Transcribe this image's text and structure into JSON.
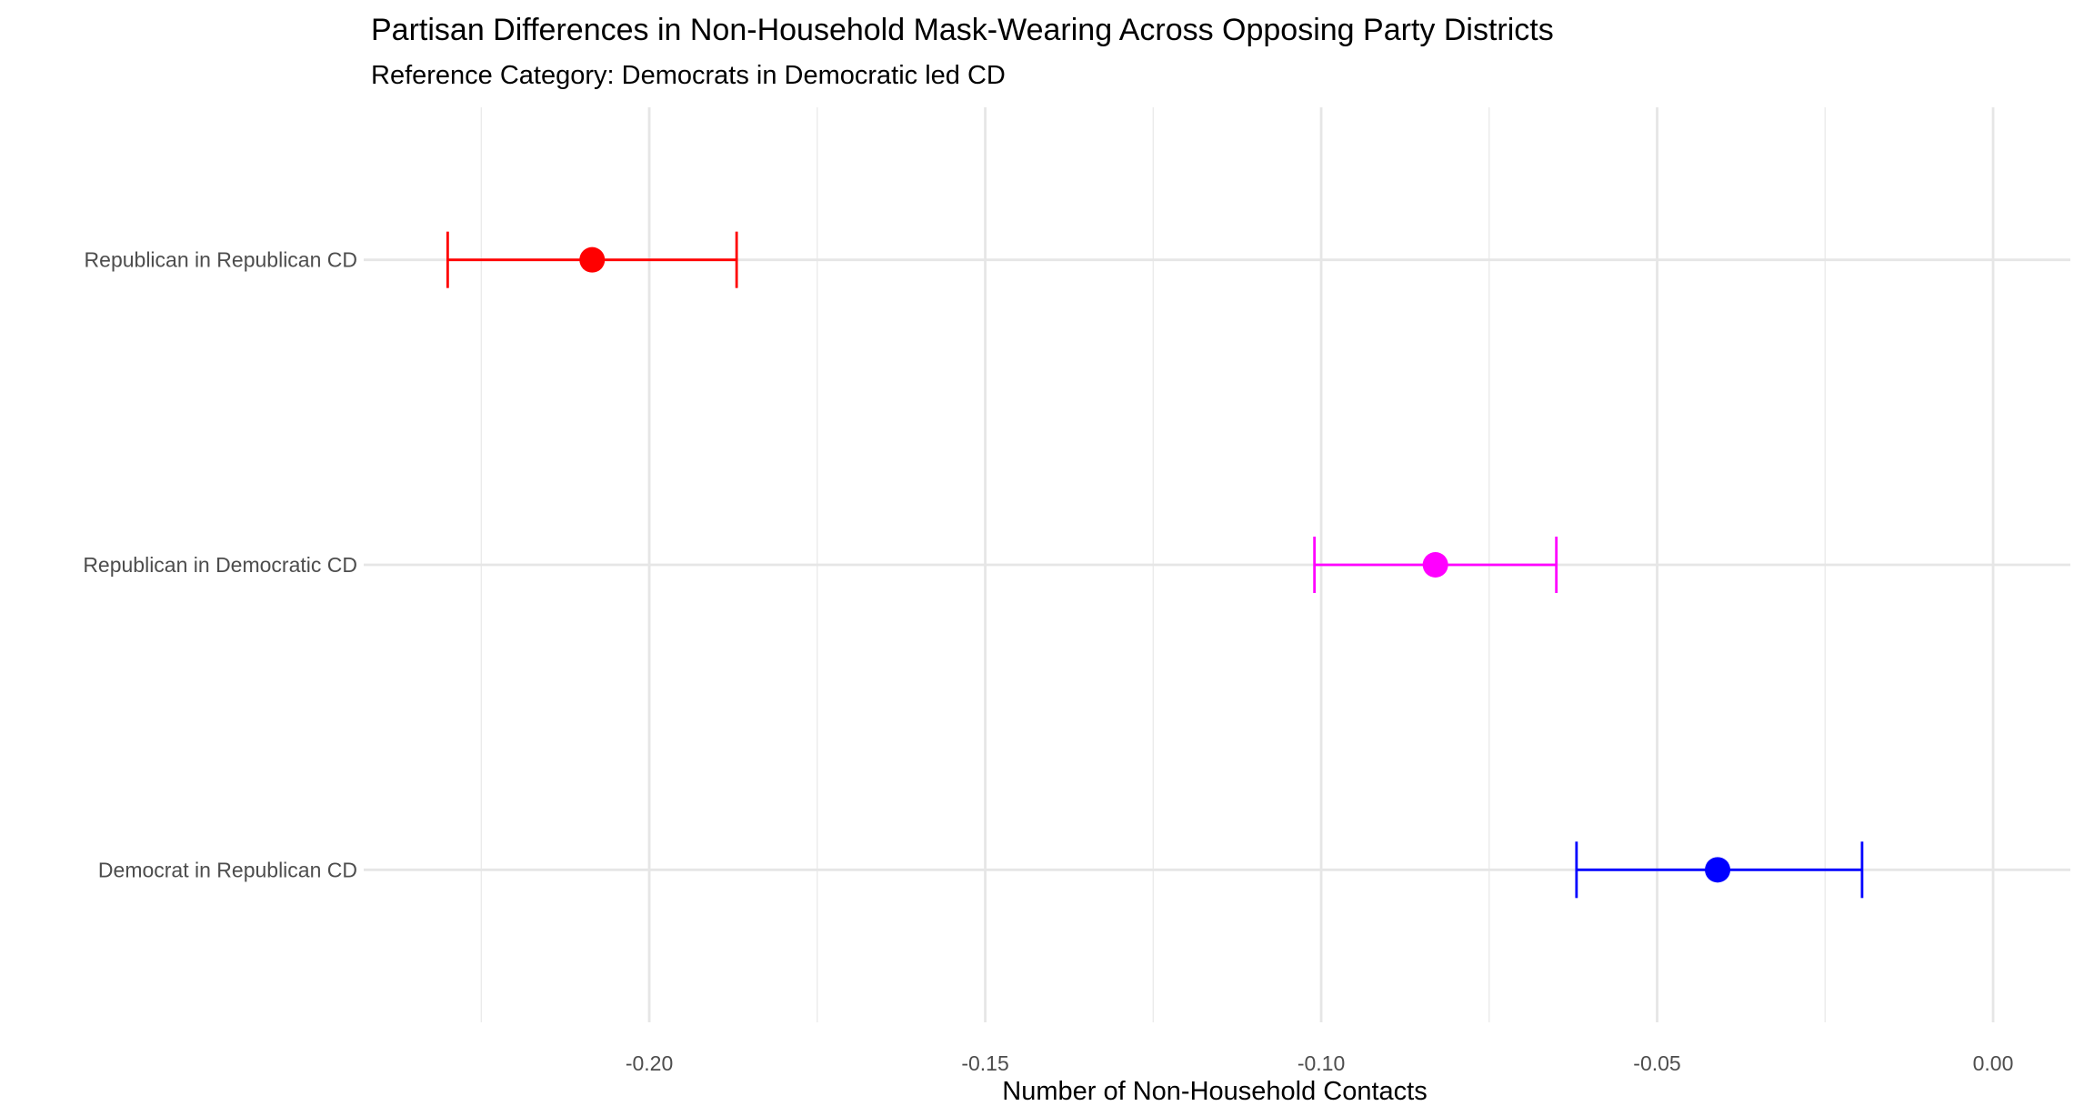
{
  "chart_data": {
    "type": "errorbar",
    "title": "Partisan Differences in Non-Household Mask-Wearing Across Opposing Party Districts",
    "subtitle": "Reference Category: Democrats in Democratic led CD",
    "xlabel": "Number of Non-Household Contacts",
    "ylabel": "",
    "xlim": [
      -0.2425,
      0.0115
    ],
    "grid": true,
    "x_ticks": [
      -0.2,
      -0.15,
      -0.1,
      -0.05,
      0.0
    ],
    "x_tick_labels": [
      "-0.20",
      "-0.15",
      "-0.10",
      "-0.05",
      "0.00"
    ],
    "x_minor_ticks": [
      -0.225,
      -0.175,
      -0.125,
      -0.075,
      -0.025
    ],
    "categories": [
      "Republican in Republican CD",
      "Republican in Democratic CD",
      "Democrat in Republican CD"
    ],
    "points": [
      {
        "category": "Republican in Republican CD",
        "estimate": -0.2085,
        "lower": -0.23,
        "upper": -0.187,
        "color": "#ff0000"
      },
      {
        "category": "Republican in Democratic CD",
        "estimate": -0.083,
        "lower": -0.101,
        "upper": -0.065,
        "color": "#ff00ff"
      },
      {
        "category": "Democrat in Republican CD",
        "estimate": -0.041,
        "lower": -0.062,
        "upper": -0.0195,
        "color": "#0000ff"
      }
    ]
  }
}
